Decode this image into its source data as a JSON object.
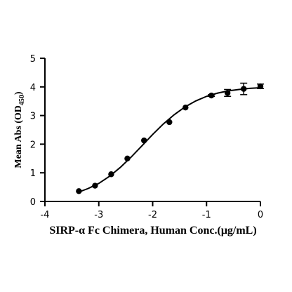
{
  "chart_data": {
    "type": "scatter",
    "xlabel": "SIRP-α Fc Chimera, Human Conc.(μg/mL)",
    "ylabel_main": "Mean Abs (OD",
    "ylabel_sub": "450",
    "ylabel_end": ")",
    "xlim": [
      -4,
      0
    ],
    "ylim": [
      0,
      5
    ],
    "x_ticks": [
      -4,
      -3,
      -2,
      -1,
      0
    ],
    "y_ticks": [
      0,
      1,
      2,
      3,
      4,
      5
    ],
    "x_tick_labels": [
      "-4",
      "-3",
      "-2",
      "-1",
      "0"
    ],
    "y_tick_labels": [
      "0",
      "1",
      "2",
      "3",
      "4",
      "5"
    ],
    "grid": false,
    "points": [
      {
        "x": -3.37,
        "y": 0.36
      },
      {
        "x": -3.07,
        "y": 0.55
      },
      {
        "x": -2.77,
        "y": 0.95
      },
      {
        "x": -2.47,
        "y": 1.5
      },
      {
        "x": -2.16,
        "y": 2.13
      },
      {
        "x": -1.69,
        "y": 2.77
      },
      {
        "x": -1.39,
        "y": 3.28
      },
      {
        "x": -0.91,
        "y": 3.7,
        "err": 0.03
      },
      {
        "x": -0.61,
        "y": 3.79,
        "err": 0.12
      },
      {
        "x": -0.31,
        "y": 3.93,
        "err": 0.2
      },
      {
        "x": 0.0,
        "y": 4.02,
        "err": 0.08
      }
    ],
    "fit_curve": [
      {
        "x": -3.37,
        "y": 0.33
      },
      {
        "x": -3.2,
        "y": 0.45
      },
      {
        "x": -3.0,
        "y": 0.63
      },
      {
        "x": -2.8,
        "y": 0.88
      },
      {
        "x": -2.6,
        "y": 1.19
      },
      {
        "x": -2.4,
        "y": 1.55
      },
      {
        "x": -2.2,
        "y": 1.94
      },
      {
        "x": -2.0,
        "y": 2.34
      },
      {
        "x": -1.8,
        "y": 2.71
      },
      {
        "x": -1.6,
        "y": 3.03
      },
      {
        "x": -1.4,
        "y": 3.3
      },
      {
        "x": -1.2,
        "y": 3.51
      },
      {
        "x": -1.0,
        "y": 3.67
      },
      {
        "x": -0.8,
        "y": 3.78
      },
      {
        "x": -0.6,
        "y": 3.86
      },
      {
        "x": -0.4,
        "y": 3.91
      },
      {
        "x": -0.2,
        "y": 3.95
      },
      {
        "x": 0.0,
        "y": 3.97
      }
    ]
  }
}
